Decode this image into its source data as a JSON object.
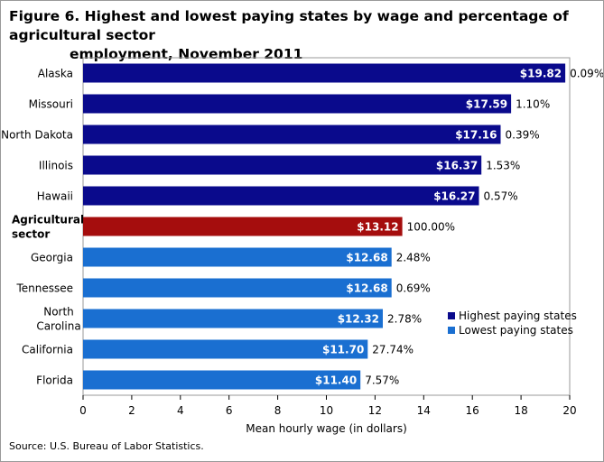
{
  "title_line1": "Figure 6. Highest and lowest paying states by wage and percentage of agricultural  sector",
  "title_line2": "employment, November 2011",
  "source": "Source:  U.S. Bureau  of Labor Statistics.",
  "chart_data": {
    "type": "bar",
    "orientation": "horizontal",
    "title": "Figure 6. Highest and lowest paying states by wage and percentage of agricultural  sector employment, November 2011",
    "xlabel": "Mean hourly wage (in dollars)",
    "ylabel": "",
    "xlim": [
      0,
      20
    ],
    "xticks": [
      0,
      2,
      4,
      6,
      8,
      10,
      12,
      14,
      16,
      18,
      20
    ],
    "grid": false,
    "legend_position": "right",
    "categories": [
      "Alaska",
      "Missouri",
      "North Dakota",
      "Illinois",
      "Hawaii",
      "Agricultural sector",
      "Georgia",
      "Tennessee",
      "North Carolina",
      "California",
      "Florida"
    ],
    "category_labels": [
      [
        "Alaska"
      ],
      [
        "Missouri"
      ],
      [
        "North Dakota"
      ],
      [
        "Illinois"
      ],
      [
        "Hawaii"
      ],
      [
        "Agricultural",
        "sector"
      ],
      [
        "Georgia"
      ],
      [
        "Tennessee"
      ],
      [
        "North",
        "Carolina"
      ],
      [
        "California"
      ],
      [
        "Florida"
      ]
    ],
    "bold_categories": [
      "Agricultural sector"
    ],
    "values": [
      19.82,
      17.59,
      17.16,
      16.37,
      16.27,
      13.12,
      12.68,
      12.68,
      12.32,
      11.7,
      11.4
    ],
    "value_labels": [
      "$19.82",
      "$17.59",
      "$17.16",
      "$16.37",
      "$16.27",
      "$13.12",
      "$12.68",
      "$12.68",
      "$12.32",
      "$11.70",
      "$11.40"
    ],
    "percent_labels": [
      "0.09%",
      "1.10%",
      "0.39%",
      "1.53%",
      "0.57%",
      "100.00%",
      "2.48%",
      "0.69%",
      "2.78%",
      "27.74%",
      "7.57%"
    ],
    "groups": [
      "highest",
      "highest",
      "highest",
      "highest",
      "highest",
      "sector",
      "lowest",
      "lowest",
      "lowest",
      "lowest",
      "lowest"
    ],
    "colors": {
      "highest": "#0a0a8c",
      "sector": "#a50d0d",
      "lowest": "#1a6fd1"
    },
    "legend": [
      {
        "key": "highest",
        "label": "Highest paying states"
      },
      {
        "key": "lowest",
        "label": "Lowest paying states"
      }
    ]
  }
}
